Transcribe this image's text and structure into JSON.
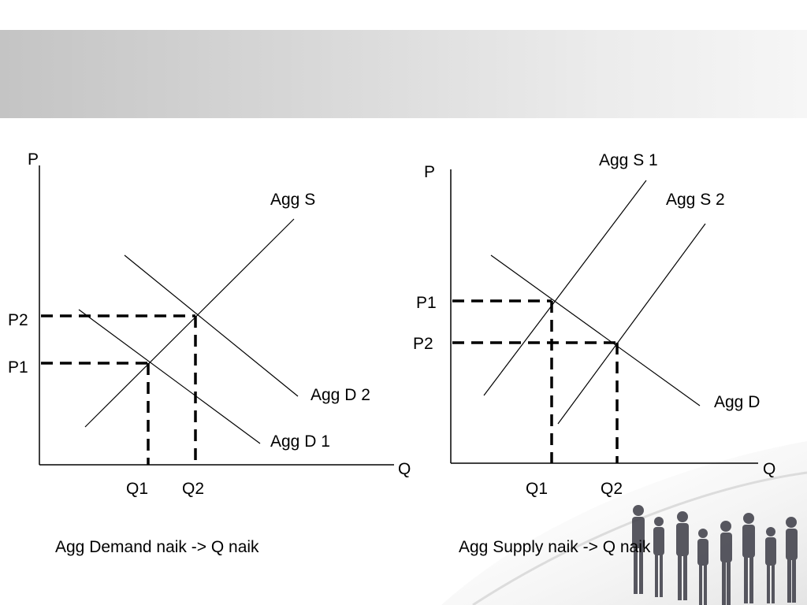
{
  "left": {
    "axis_p": "P",
    "axis_q": "Q",
    "supply": "Agg S",
    "demand1": "Agg  D 1",
    "demand2": "Agg D 2",
    "p1": "P1",
    "p2": "P2",
    "q1": "Q1",
    "q2": "Q2",
    "caption": "Agg Demand naik -> Q naik"
  },
  "right": {
    "axis_p": "P",
    "axis_q": "Q",
    "supply1": "Agg  S 1",
    "supply2": "Agg  S 2",
    "demand": "Agg D",
    "p1": "P1",
    "p2": "P2",
    "q1": "Q1",
    "q2": "Q2",
    "caption": "Agg Supply naik -> Q naik"
  },
  "colors": {
    "banner": "#cfcfcf",
    "lines": "#000000"
  },
  "decor": "business-people-silhouettes"
}
